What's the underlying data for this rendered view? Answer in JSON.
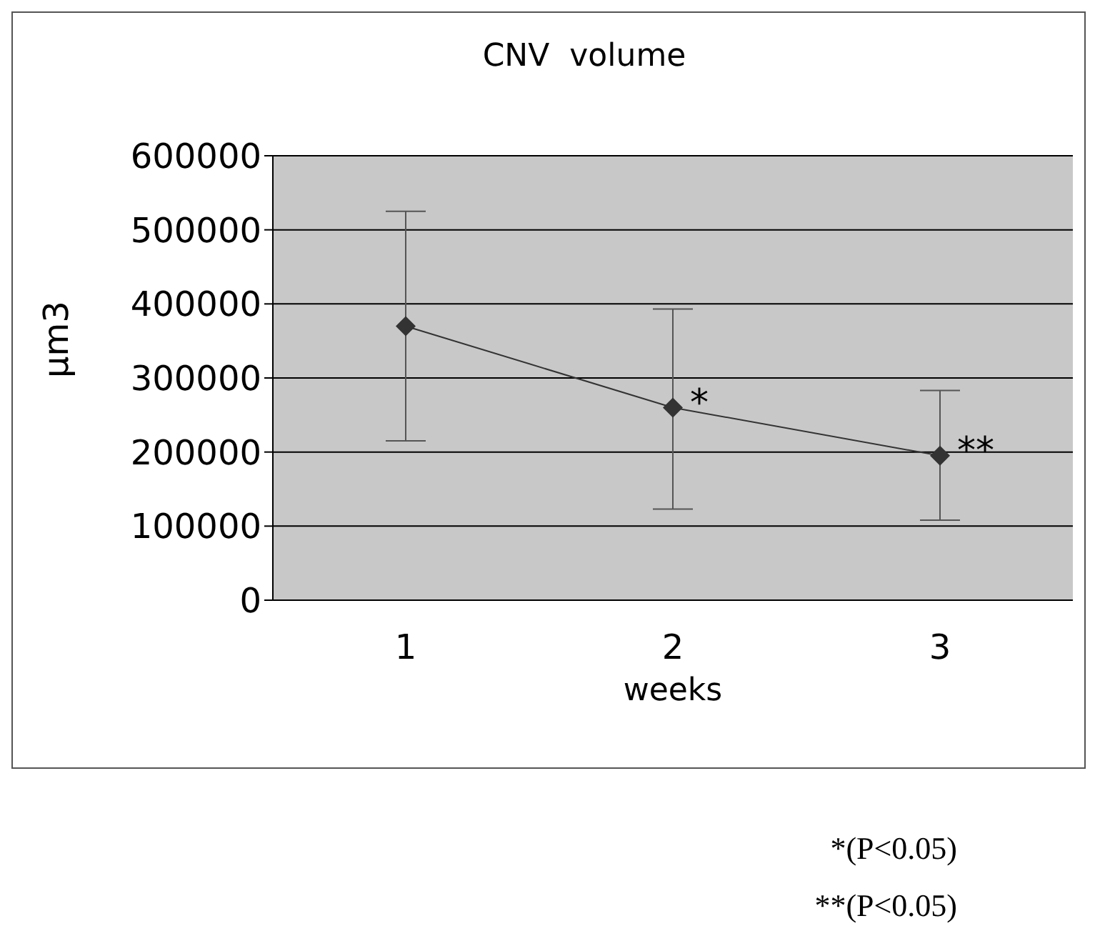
{
  "chart_data": {
    "type": "line",
    "title": "CNV  volume",
    "xlabel": "weeks",
    "ylabel": "μm3",
    "categories": [
      "1",
      "2",
      "3"
    ],
    "values": [
      370000,
      260000,
      195000
    ],
    "errors": [
      [
        215000,
        525000
      ],
      [
        123000,
        393000
      ],
      [
        108000,
        283000
      ]
    ],
    "color": "#333333",
    "marker": "diamond",
    "line_style": "solid",
    "grid": "y",
    "ylim": [
      0,
      600000
    ],
    "yticks": [
      0,
      100000,
      200000,
      300000,
      400000,
      500000,
      600000
    ],
    "annotations": [
      {
        "text": "*",
        "x": "2",
        "y": 260000
      },
      {
        "text": "**",
        "x": "3",
        "y": 195000
      },
      "*(P<0.05)",
      "**(P<0.05)"
    ]
  }
}
